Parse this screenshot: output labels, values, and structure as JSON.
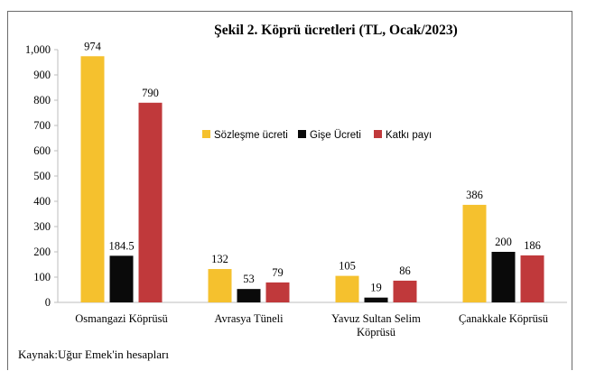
{
  "chart_data": {
    "type": "bar",
    "title": "Şekil 2. Köprü ücretleri (TL, Ocak/2023)",
    "categories": [
      [
        "Osmangazi Köprüsü"
      ],
      [
        "Avrasya Tüneli"
      ],
      [
        "Yavuz Sultan Selim",
        "Köprüsü"
      ],
      [
        "Çanakkale Köprüsü"
      ]
    ],
    "series": [
      {
        "name": "Sözleşme ücreti",
        "values": [
          974,
          132,
          105,
          386
        ],
        "labels": [
          "974",
          "132",
          "105",
          "386"
        ],
        "color": "#f5c12e"
      },
      {
        "name": "Gişe Ücreti",
        "values": [
          184.5,
          53,
          19,
          200
        ],
        "labels": [
          "184.5",
          "53",
          "19",
          "200"
        ],
        "color": "#0a0a0a"
      },
      {
        "name": "Katkı payı",
        "values": [
          790,
          79,
          86,
          186
        ],
        "labels": [
          "790",
          "79",
          "86",
          "186"
        ],
        "color": "#c0393b"
      }
    ],
    "ylim": [
      0,
      1000
    ],
    "yticks": [
      0,
      100,
      200,
      300,
      400,
      500,
      600,
      700,
      800,
      900,
      1000
    ],
    "ytick_labels": [
      "0",
      "100",
      "200",
      "300",
      "400",
      "500",
      "600",
      "700",
      "800",
      "900",
      "1,000"
    ],
    "legend_position": "right-middle",
    "grid": false
  },
  "source": "Kaynak:Uğur Emek'in hesapları"
}
